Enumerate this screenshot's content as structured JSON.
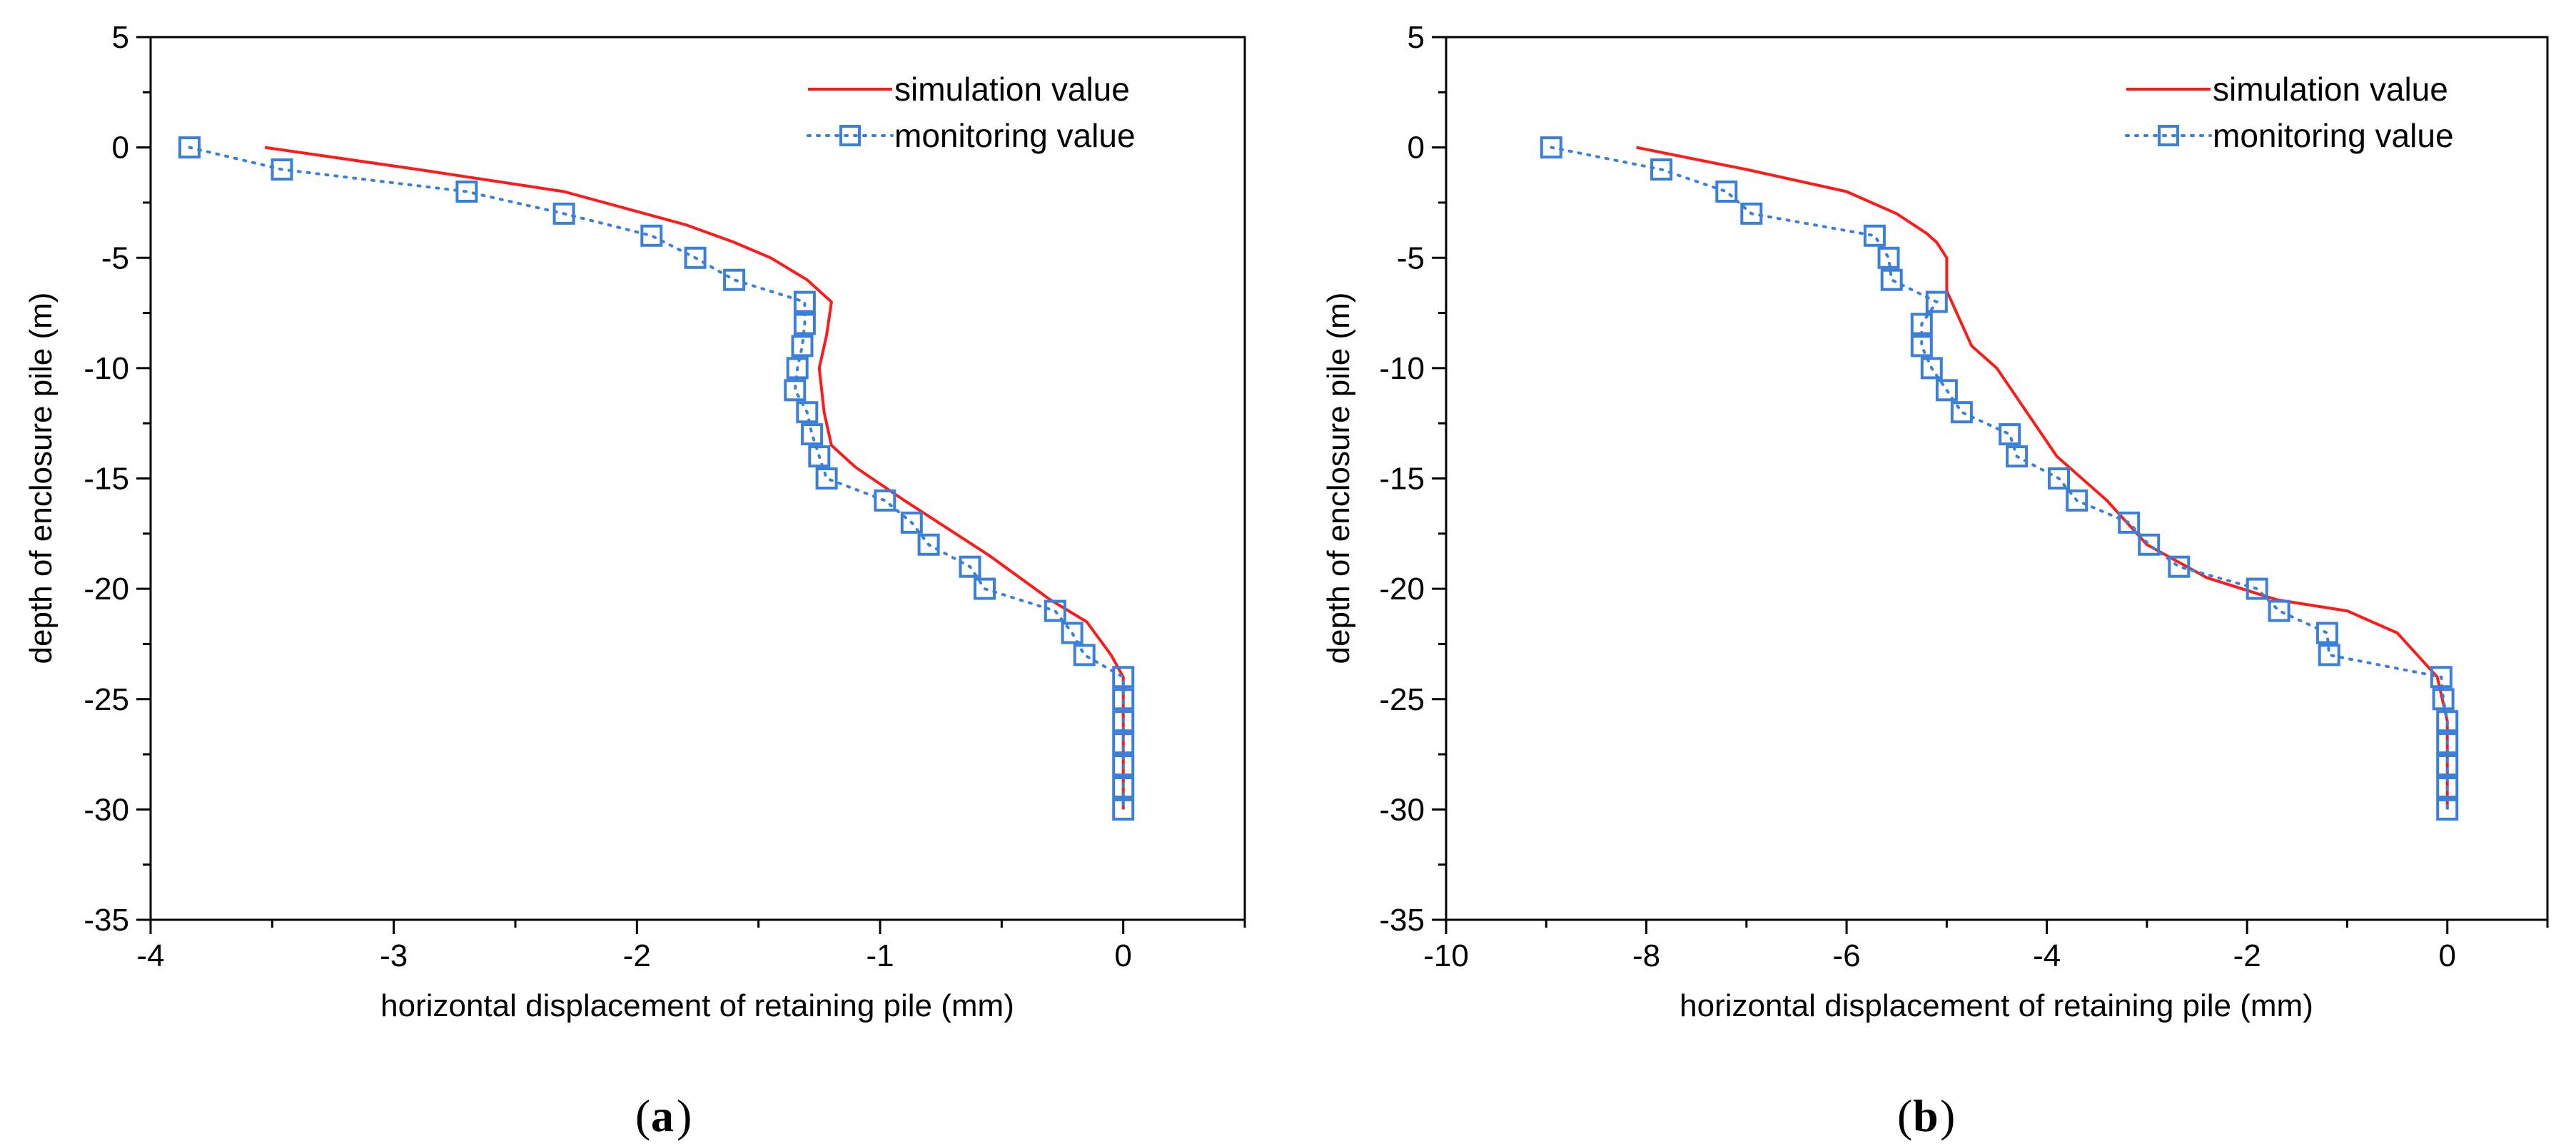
{
  "colors": {
    "simulation": "#ff1a1a",
    "monitoring": "#3a7fd9",
    "axis": "#000000"
  },
  "chart_data": [
    {
      "panel": "a",
      "caption": {
        "open": "(",
        "letter": "a",
        "close": ")"
      },
      "type": "line",
      "title": "",
      "xlabel": "horizontal displacement of retaining pile (mm)",
      "ylabel": "depth of enclosure pile (m)",
      "xlim": [
        -4,
        0.5
      ],
      "ylim": [
        -35,
        5
      ],
      "xticks": [
        -4,
        -3,
        -2,
        -1,
        0
      ],
      "xtick_labels": [
        "-4",
        "-3",
        "-2",
        "-1",
        "0"
      ],
      "yticks": [
        5,
        0,
        -5,
        -10,
        -15,
        -20,
        -25,
        -30,
        -35
      ],
      "ytick_labels": [
        "5",
        "0",
        "-5",
        "-10",
        "-15",
        "-20",
        "-25",
        "-30",
        "-35"
      ],
      "legend_position": "top-right",
      "series": [
        {
          "name": "simulation value",
          "style": "solid-line",
          "x": [
            -3.53,
            -2.9,
            -2.3,
            -1.8,
            -1.6,
            -1.45,
            -1.3,
            -1.2,
            -1.22,
            -1.25,
            -1.23,
            -1.2,
            -1.1,
            -0.9,
            -0.55,
            -0.3,
            -0.15,
            -0.05,
            0,
            0
          ],
          "y": [
            0,
            -1,
            -2,
            -3.5,
            -4.3,
            -5,
            -6,
            -7,
            -8.5,
            -10,
            -12,
            -13.5,
            -14.5,
            -16,
            -18.5,
            -20.5,
            -21.5,
            -23,
            -24,
            -30
          ]
        },
        {
          "name": "monitoring value",
          "style": "dotted-line-square-markers",
          "x": [
            -3.84,
            -3.46,
            -2.7,
            -2.3,
            -1.94,
            -1.76,
            -1.6,
            -1.31,
            -1.31,
            -1.32,
            -1.34,
            -1.35,
            -1.3,
            -1.28,
            -1.25,
            -1.22,
            -0.98,
            -0.87,
            -0.8,
            -0.63,
            -0.57,
            -0.28,
            -0.21,
            -0.16,
            0,
            0,
            0,
            0,
            0,
            0,
            0
          ],
          "y": [
            0,
            -1,
            -2,
            -3,
            -4,
            -5,
            -6,
            -7,
            -8,
            -9,
            -10,
            -11,
            -12,
            -13,
            -14,
            -15,
            -16,
            -17,
            -18,
            -19,
            -20,
            -21,
            -22,
            -23,
            -24,
            -25,
            -26,
            -27,
            -28,
            -29,
            -30
          ]
        }
      ]
    },
    {
      "panel": "b",
      "caption": {
        "open": "(",
        "letter": "b",
        "close": ")"
      },
      "type": "line",
      "title": "",
      "xlabel": "horizontal displacement of retaining pile (mm)",
      "ylabel": "depth of enclosure pile (m)",
      "xlim": [
        -10,
        1
      ],
      "ylim": [
        -35,
        5
      ],
      "xticks": [
        -10,
        -8,
        -6,
        -4,
        -2,
        0
      ],
      "xtick_labels": [
        "-10",
        "-8",
        "-6",
        "-4",
        "-2",
        "0"
      ],
      "yticks": [
        5,
        0,
        -5,
        -10,
        -15,
        -20,
        -25,
        -30,
        -35
      ],
      "ytick_labels": [
        "5",
        "0",
        "-5",
        "-10",
        "-15",
        "-20",
        "-25",
        "-30",
        "-35"
      ],
      "legend_position": "top-right",
      "series": [
        {
          "name": "simulation value",
          "style": "solid-line",
          "x": [
            -8.1,
            -7,
            -6,
            -5.5,
            -5.2,
            -5.1,
            -5,
            -5,
            -4.9,
            -4.75,
            -4.5,
            -4.2,
            -3.9,
            -3.4,
            -3,
            -2.4,
            -1.7,
            -1,
            -0.5,
            -0.1,
            0,
            0
          ],
          "y": [
            0,
            -1,
            -2,
            -3,
            -3.9,
            -4.3,
            -5,
            -6.5,
            -7.5,
            -9,
            -10,
            -12,
            -14,
            -16,
            -18,
            -19.5,
            -20.5,
            -21,
            -22,
            -24,
            -26,
            -30
          ]
        },
        {
          "name": "monitoring value",
          "style": "dotted-line-square-markers",
          "x": [
            -8.95,
            -7.85,
            -7.2,
            -6.95,
            -5.72,
            -5.58,
            -5.55,
            -5.1,
            -5.25,
            -5.25,
            -5.15,
            -5.0,
            -4.85,
            -4.37,
            -4.3,
            -3.88,
            -3.7,
            -3.18,
            -2.98,
            -2.68,
            -1.9,
            -1.68,
            -1.2,
            -1.18,
            -0.06,
            -0.04,
            0,
            0,
            0,
            0,
            0
          ],
          "y": [
            0,
            -1,
            -2,
            -3,
            -4,
            -5,
            -6,
            -7,
            -8,
            -9,
            -10,
            -11,
            -12,
            -13,
            -14,
            -15,
            -16,
            -17,
            -18,
            -19,
            -20,
            -21,
            -22,
            -23,
            -24,
            -25,
            -26,
            -27,
            -28,
            -29,
            -30
          ]
        }
      ]
    }
  ]
}
